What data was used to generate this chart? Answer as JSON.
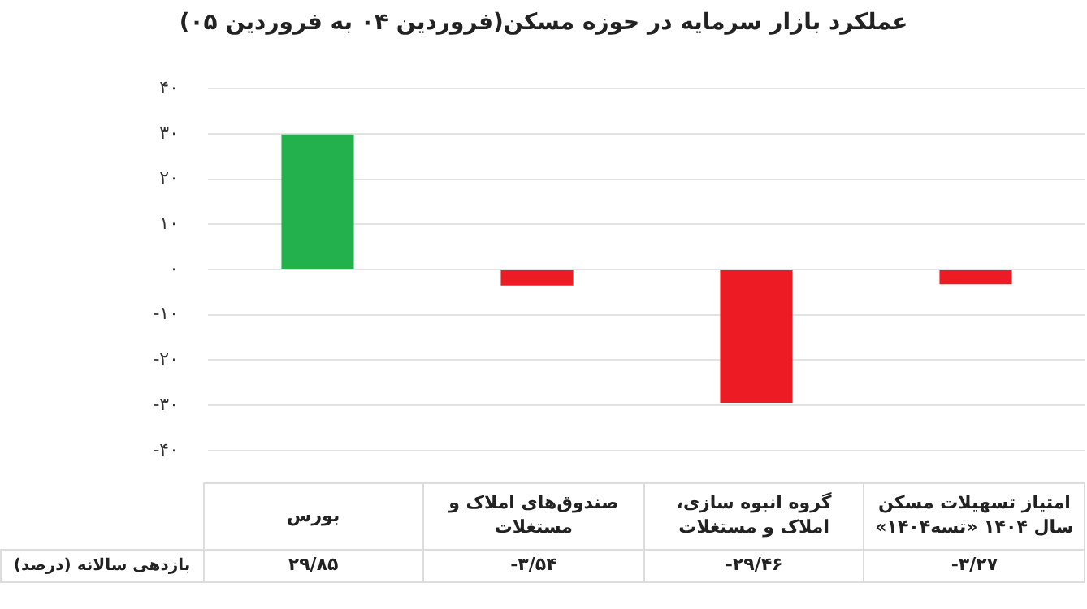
{
  "chart_data": {
    "type": "bar",
    "title": "عملکرد بازار سرمایه در حوزه مسکن(فروردین ۰۴ به فروردین ۰۵)",
    "categories": [
      "بورس",
      "صندوق‌های املاک و مستغلات",
      "گروه انبوه سازی، املاک و مستغلات",
      "امتیاز تسهیلات مسکن سال ۱۴۰۴ «تسه۱۴۰۴»"
    ],
    "values": [
      29.85,
      -3.54,
      -29.46,
      -3.27
    ],
    "colors": [
      "#22b14c",
      "#ed1c24",
      "#ed1c24",
      "#ed1c24"
    ],
    "value_labels": [
      "۲۹/۸۵",
      "-۳/۵۴",
      "-۲۹/۴۶",
      "-۳/۲۷"
    ],
    "annotations": [
      "بازدهی سالانه (درصد)"
    ],
    "ylim": [
      -40,
      40
    ],
    "yticks": [
      {
        "value": 40,
        "label": "۴۰"
      },
      {
        "value": 30,
        "label": "۳۰"
      },
      {
        "value": 20,
        "label": "۲۰"
      },
      {
        "value": 10,
        "label": "۱۰"
      },
      {
        "value": 0,
        "label": "۰"
      },
      {
        "value": -10,
        "label": "-۱۰"
      },
      {
        "value": -20,
        "label": "-۲۰"
      },
      {
        "value": -30,
        "label": "-۳۰"
      },
      {
        "value": -40,
        "label": "-۴۰"
      }
    ],
    "grid": "y"
  }
}
